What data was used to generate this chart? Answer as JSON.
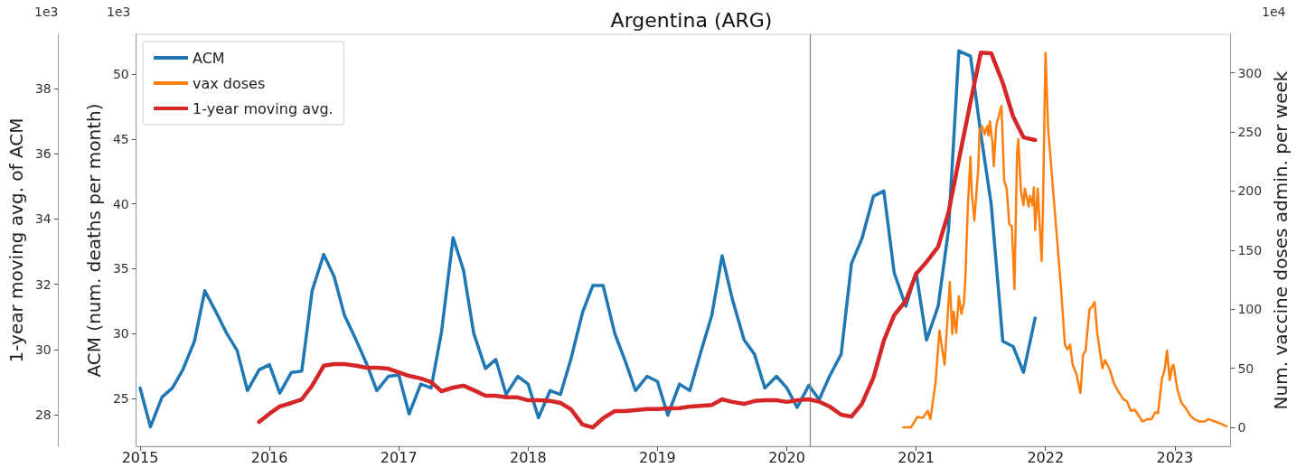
{
  "chart_data": {
    "type": "line",
    "title": "Argentina (ARG)",
    "ylabel": "ACM (num. deaths per month)",
    "y2label": "1-year moving avg. of ACM",
    "y3label": "Num. vaccine doses admin. per week",
    "annotations": [
      "1e3",
      "1e3",
      "1e4"
    ],
    "xlim": [
      2014.97,
      2023.43
    ],
    "xticks": [
      2015,
      2016,
      2017,
      2018,
      2019,
      2020,
      2021,
      2022,
      2023
    ],
    "ylim": [
      21.3,
      53.08
    ],
    "yticks": [
      25,
      30,
      35,
      40,
      45,
      50
    ],
    "y2lim": [
      27.03,
      39.66
    ],
    "y2ticks": [
      28,
      30,
      32,
      34,
      36,
      38
    ],
    "y3lim": [
      -16,
      332.6
    ],
    "y3ticks": [
      0,
      50,
      100,
      150,
      200,
      250,
      300
    ],
    "legend": "top left",
    "grid": false,
    "marker": "none",
    "ref_lines": [
      {
        "axis": "x",
        "value": 2020.18,
        "color": "#808080"
      }
    ],
    "series": [
      {
        "name": "ACM",
        "color": "#1f77b4",
        "axis": "y",
        "x": [
          2015.0,
          2015.08,
          2015.17,
          2015.25,
          2015.33,
          2015.42,
          2015.5,
          2015.58,
          2015.67,
          2015.75,
          2015.83,
          2015.92,
          2016.0,
          2016.08,
          2016.17,
          2016.25,
          2016.33,
          2016.42,
          2016.5,
          2016.58,
          2016.67,
          2016.75,
          2016.83,
          2016.92,
          2017.0,
          2017.08,
          2017.17,
          2017.25,
          2017.33,
          2017.42,
          2017.5,
          2017.58,
          2017.67,
          2017.75,
          2017.83,
          2017.92,
          2018.0,
          2018.08,
          2018.17,
          2018.25,
          2018.33,
          2018.42,
          2018.5,
          2018.58,
          2018.67,
          2018.75,
          2018.83,
          2018.92,
          2019.0,
          2019.08,
          2019.17,
          2019.25,
          2019.33,
          2019.42,
          2019.5,
          2019.58,
          2019.67,
          2019.75,
          2019.83,
          2019.92,
          2020.0,
          2020.08,
          2020.17,
          2020.25,
          2020.33,
          2020.42,
          2020.5,
          2020.58,
          2020.67,
          2020.75,
          2020.83,
          2020.92,
          2021.0,
          2021.08,
          2021.17,
          2021.25,
          2021.33,
          2021.42,
          2021.5,
          2021.58,
          2021.67,
          2021.75,
          2021.83,
          2021.92
        ],
        "values": [
          25.8,
          22.8,
          25.1,
          25.8,
          27.2,
          29.4,
          33.3,
          31.8,
          30.0,
          28.7,
          25.6,
          27.2,
          27.6,
          25.4,
          27.0,
          27.1,
          33.3,
          36.1,
          34.4,
          31.4,
          29.5,
          27.7,
          25.6,
          26.7,
          26.8,
          23.8,
          26.1,
          25.8,
          30.1,
          37.4,
          34.9,
          30.0,
          27.3,
          28.0,
          25.3,
          26.7,
          26.1,
          23.5,
          25.6,
          25.3,
          28.0,
          31.6,
          33.7,
          33.7,
          30.0,
          27.9,
          25.6,
          26.7,
          26.3,
          23.7,
          26.1,
          25.6,
          28.4,
          31.4,
          36.0,
          32.6,
          29.5,
          28.4,
          25.8,
          26.7,
          25.8,
          24.3,
          26.0,
          24.9,
          26.7,
          28.4,
          35.4,
          37.3,
          40.6,
          41.0,
          34.7,
          32.1,
          34.7,
          29.5,
          32.1,
          38.0,
          51.8,
          51.4,
          45.4,
          40.0,
          29.4,
          29.0,
          27.0,
          31.2
        ]
      },
      {
        "name": "vax doses",
        "color": "#ff7f0e",
        "axis": "y3",
        "x": [
          2020.9,
          2020.96,
          2021.01,
          2021.05,
          2021.07,
          2021.09,
          2021.11,
          2021.15,
          2021.18,
          2021.22,
          2021.26,
          2021.28,
          2021.29,
          2021.31,
          2021.33,
          2021.35,
          2021.37,
          2021.38,
          2021.4,
          2021.42,
          2021.43,
          2021.45,
          2021.48,
          2021.49,
          2021.51,
          2021.53,
          2021.55,
          2021.56,
          2021.57,
          2021.59,
          2021.6,
          2021.62,
          2021.64,
          2021.66,
          2021.68,
          2021.7,
          2021.72,
          2021.74,
          2021.76,
          2021.78,
          2021.79,
          2021.81,
          2021.83,
          2021.84,
          2021.87,
          2021.88,
          2021.9,
          2021.91,
          2021.92,
          2021.94,
          2021.97,
          2021.98,
          2022.0,
          2022.02,
          2022.04,
          2022.08,
          2022.12,
          2022.15,
          2022.17,
          2022.19,
          2022.21,
          2022.24,
          2022.27,
          2022.29,
          2022.31,
          2022.34,
          2022.36,
          2022.38,
          2022.4,
          2022.44,
          2022.46,
          2022.5,
          2022.53,
          2022.56,
          2022.6,
          2022.63,
          2022.66,
          2022.69,
          2022.72,
          2022.75,
          2022.79,
          2022.82,
          2022.85,
          2022.87,
          2022.9,
          2022.92,
          2022.94,
          2022.96,
          2022.98,
          2022.99,
          2023.02,
          2023.05,
          2023.08,
          2023.12,
          2023.15,
          2023.19,
          2023.23,
          2023.26,
          2023.31,
          2023.36,
          2023.4
        ],
        "values": [
          0,
          0,
          9,
          8,
          11,
          14,
          7,
          38,
          82,
          53,
          123,
          79,
          98,
          80,
          111,
          96,
          106,
          125,
          188,
          229,
          199,
          175,
          219,
          251,
          255,
          248,
          255,
          247,
          259,
          241,
          221,
          256,
          264,
          272,
          209,
          202,
          172,
          170,
          117,
          232,
          244,
          200,
          188,
          202,
          187,
          196,
          188,
          203,
          167,
          202,
          141,
          183,
          317,
          253,
          226,
          172,
          118,
          70,
          66,
          70,
          53,
          45,
          29,
          61,
          65,
          100,
          102,
          106,
          80,
          50,
          57,
          48,
          37,
          31,
          24,
          22,
          14,
          15,
          10,
          5,
          7,
          7,
          13,
          12,
          41,
          48,
          65,
          40,
          52,
          53,
          32,
          21,
          17,
          10,
          7,
          5,
          5,
          7,
          5,
          3,
          1
        ]
      },
      {
        "name": "1-year moving avg.",
        "color": "#d62728",
        "axis": "y2",
        "x": [
          2015.92,
          2016.0,
          2016.08,
          2016.17,
          2016.25,
          2016.33,
          2016.42,
          2016.5,
          2016.58,
          2016.67,
          2016.75,
          2016.83,
          2016.92,
          2017.0,
          2017.08,
          2017.17,
          2017.25,
          2017.33,
          2017.42,
          2017.5,
          2017.58,
          2017.67,
          2017.75,
          2017.83,
          2017.92,
          2018.0,
          2018.08,
          2018.17,
          2018.25,
          2018.33,
          2018.42,
          2018.5,
          2018.58,
          2018.67,
          2018.75,
          2018.83,
          2018.92,
          2019.0,
          2019.08,
          2019.17,
          2019.25,
          2019.33,
          2019.42,
          2019.5,
          2019.58,
          2019.67,
          2019.75,
          2019.83,
          2019.92,
          2020.0,
          2020.08,
          2020.17,
          2020.25,
          2020.33,
          2020.42,
          2020.5,
          2020.58,
          2020.67,
          2020.75,
          2020.83,
          2020.92,
          2021.0,
          2021.08,
          2021.17,
          2021.25,
          2021.33,
          2021.42,
          2021.5,
          2021.58,
          2021.67,
          2021.75,
          2021.83,
          2021.92
        ],
        "values": [
          27.78,
          28.03,
          28.25,
          28.36,
          28.47,
          28.89,
          29.5,
          29.55,
          29.55,
          29.5,
          29.44,
          29.44,
          29.41,
          29.3,
          29.19,
          29.11,
          29.0,
          28.72,
          28.83,
          28.89,
          28.75,
          28.58,
          28.58,
          28.53,
          28.53,
          28.44,
          28.44,
          28.42,
          28.36,
          28.17,
          27.7,
          27.61,
          27.89,
          28.11,
          28.11,
          28.14,
          28.17,
          28.17,
          28.19,
          28.2,
          28.25,
          28.27,
          28.3,
          28.47,
          28.39,
          28.33,
          28.42,
          28.44,
          28.44,
          28.39,
          28.44,
          28.47,
          28.4,
          28.25,
          28.0,
          27.94,
          28.33,
          29.14,
          30.27,
          31.05,
          31.49,
          32.32,
          32.68,
          33.15,
          34.2,
          35.81,
          37.58,
          39.1,
          39.08,
          38.17,
          37.14,
          36.5,
          36.42
        ]
      }
    ]
  }
}
